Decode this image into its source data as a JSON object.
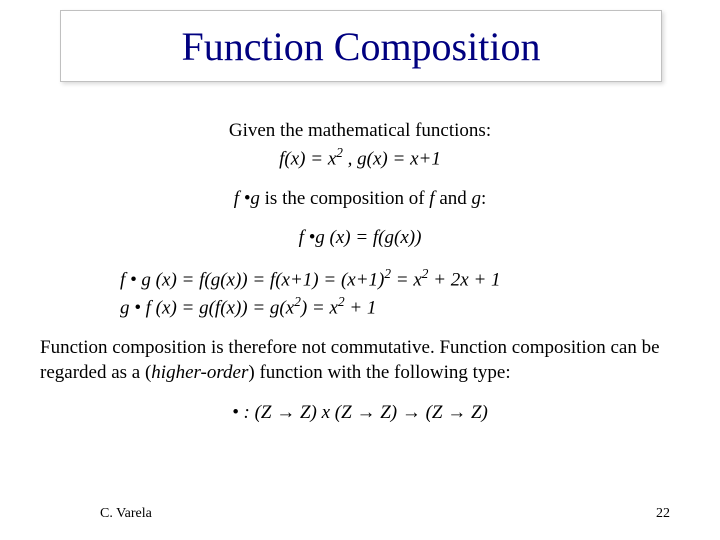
{
  "title": "Function Composition",
  "title_color": "#000080",
  "title_fontsize": 40,
  "body_fontsize": 19,
  "body_color": "#000000",
  "background_color": "#ffffff",
  "title_box_border_color": "#c0c0c0",
  "slide_width": 720,
  "slide_height": 540,
  "given_line1": "Given the mathematical functions:",
  "given_line2_fx": "f(x) = x",
  "given_line2_exp": "2",
  "given_line2_rest": " ,  g(x) = x+1",
  "comp_def_prefix_i": "f ",
  "comp_def_dot": "•",
  "comp_def_mid_i": "g",
  "comp_def_plain": " is the composition of ",
  "comp_def_f_i": "f",
  "comp_def_and": " and ",
  "comp_def_g_i": "g",
  "comp_def_colon": ":",
  "comp_eq_i": "f •g (x) = f(g(x))",
  "expand_fog_1": "f • g (x) = f(g(x)) = f(x+1) = (x+1)",
  "expand_fog_exp": "2",
  "expand_fog_2": " = x",
  "expand_fog_exp2": "2",
  "expand_fog_3": " + 2x + 1",
  "expand_gof_1": "g • f (x) = g(f(x)) = g(x",
  "expand_gof_exp": "2",
  "expand_gof_2": ") = x",
  "expand_gof_exp2": "2",
  "expand_gof_3": " + 1",
  "conclusion_1": "Function composition is therefore not commutative.  Function composition can be regarded as a (",
  "conclusion_i": "higher-order",
  "conclusion_2": ") function with the following type:",
  "type_sig": "• : (Z → Z) x (Z → Z) → (Z → Z)",
  "footer_author": "C. Varela",
  "footer_page": "22"
}
